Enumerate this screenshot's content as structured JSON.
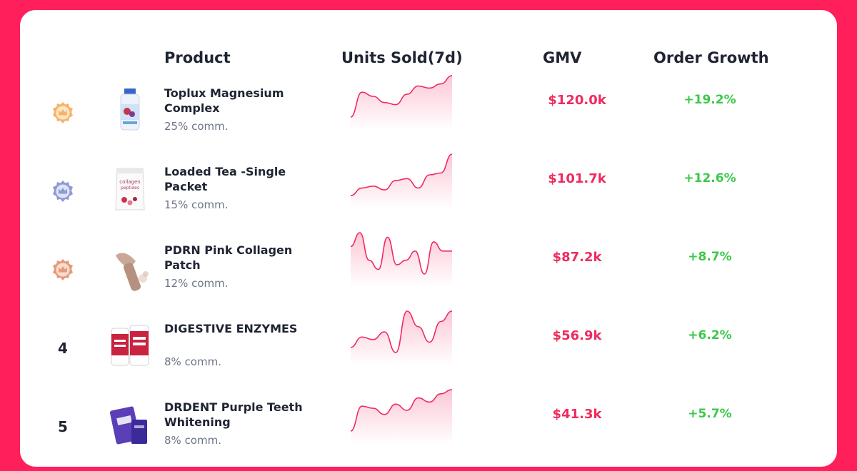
{
  "headers": {
    "product": "Product",
    "units": "Units Sold(7d)",
    "gmv": "GMV",
    "growth": "Order Growth"
  },
  "colors": {
    "background": "#ff1f5b",
    "gmv": "#ef2b5e",
    "growth": "#3cc84a",
    "gold_badge": "#f7b26a",
    "silver_badge": "#8e9ad6",
    "bronze_badge": "#e59a7a"
  },
  "rows": [
    {
      "rank_icon": "gold-crown-badge-icon",
      "name": "Toplux Magnesium Complex",
      "commission": "25% comm.",
      "trend": [
        1,
        1.6,
        1.5,
        1.35,
        1.3,
        1.55,
        1.75,
        1.7,
        1.8,
        2.0
      ],
      "gmv": "$120.0k",
      "growth": "+19.2%",
      "image_icon": "supplement-bottle-image"
    },
    {
      "rank_icon": "silver-crown-badge-icon",
      "name": "Loaded Tea -Single Packet",
      "commission": "15% comm.",
      "trend": [
        1,
        1.2,
        1.25,
        1.15,
        1.4,
        1.45,
        1.2,
        1.55,
        1.6,
        2.1
      ],
      "gmv": "$101.7k",
      "growth": "+12.6%",
      "image_icon": "collagen-peptides-pouch-image"
    },
    {
      "rank_icon": "bronze-crown-badge-icon",
      "name": "PDRN Pink Collagen Patch",
      "commission": "12% comm.",
      "trend": [
        1.6,
        1.9,
        1.3,
        1.1,
        1.8,
        1.2,
        1.3,
        1.5,
        1.0,
        1.7,
        1.5,
        1.5
      ],
      "gmv": "$87.2k",
      "growth": "+8.7%",
      "image_icon": "cosmetic-stick-image"
    },
    {
      "rank": "4",
      "name": "DIGESTIVE ENZYMES",
      "commission": "8% comm.",
      "trend": [
        1.2,
        1.4,
        1.35,
        1.5,
        1.1,
        1.9,
        1.6,
        1.3,
        1.7,
        1.9
      ],
      "gmv": "$56.9k",
      "growth": "+6.2%",
      "image_icon": "digestive-enzymes-bottles-image"
    },
    {
      "rank": "5",
      "name": "DRDENT Purple Teeth Whitening",
      "commission": "8% comm.",
      "trend": [
        1,
        1.6,
        1.55,
        1.4,
        1.65,
        1.5,
        1.8,
        1.7,
        1.9,
        2.0
      ],
      "gmv": "$41.3k",
      "growth": "+5.7%",
      "image_icon": "teeth-whitening-strips-image"
    }
  ]
}
